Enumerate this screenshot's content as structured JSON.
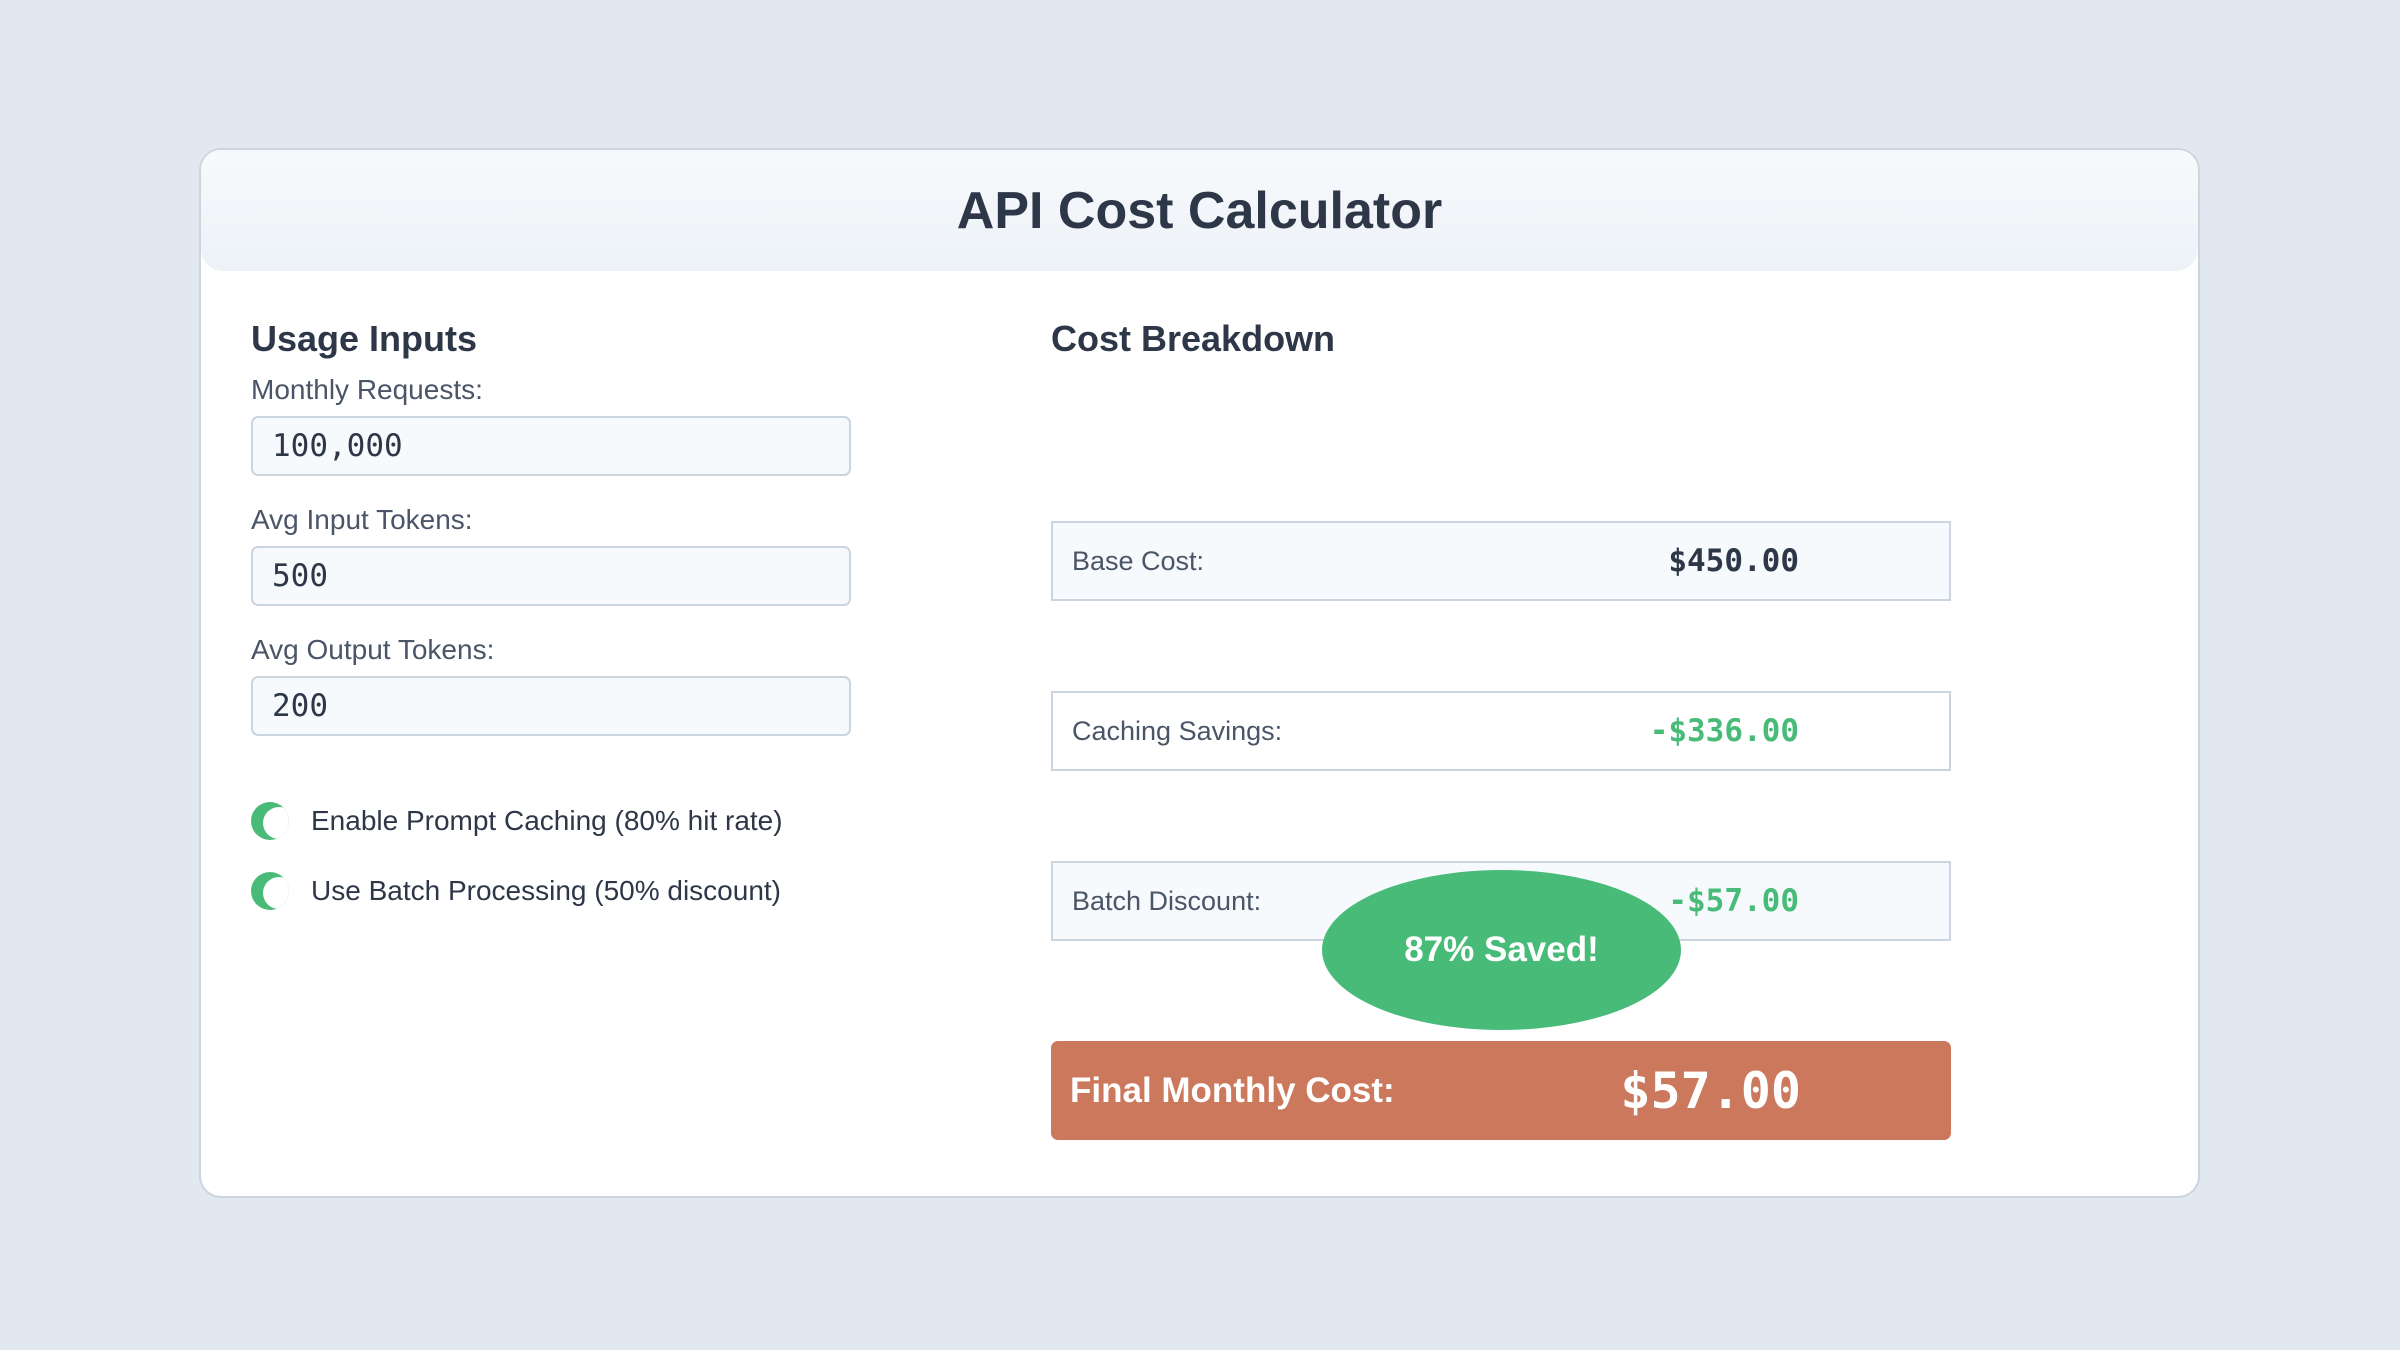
{
  "header": {
    "title": "API Cost Calculator"
  },
  "inputs": {
    "heading": "Usage Inputs",
    "monthly_requests": {
      "label": "Monthly Requests:",
      "value": "100,000"
    },
    "avg_input_tokens": {
      "label": "Avg Input Tokens:",
      "value": "500"
    },
    "avg_output_tokens": {
      "label": "Avg Output Tokens:",
      "value": "200"
    },
    "toggles": [
      {
        "label": "Enable Prompt Caching (80% hit rate)",
        "enabled": true
      },
      {
        "label": "Use Batch Processing (50% discount)",
        "enabled": true
      }
    ]
  },
  "breakdown": {
    "heading": "Cost Breakdown",
    "rows": [
      {
        "label": "Base Cost:",
        "value": "$450.00"
      },
      {
        "label": "Caching Savings:",
        "value": "-$336.00"
      },
      {
        "label": "Batch Discount:",
        "value": "-$57.00"
      }
    ],
    "final": {
      "label": "Final Monthly Cost:",
      "value": "$57.00"
    },
    "savings_badge": "87% Saved!"
  },
  "colors": {
    "accent": "#cc785c",
    "success": "#48bb78",
    "text": "#2d3748",
    "background": "#e2e8f0"
  }
}
